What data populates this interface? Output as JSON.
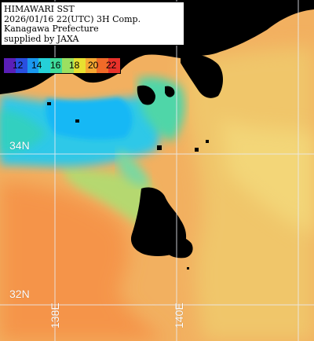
{
  "map": {
    "title_lines": [
      "HIMAWARI SST",
      "2026/01/16 22(UTC) 3H Comp.",
      "Kanagawa Prefecture",
      "supplied by JAXA"
    ],
    "legend": {
      "ticks": [
        "12",
        "14",
        "16",
        "18",
        "20",
        "22"
      ],
      "colors": [
        "#5a1fb8",
        "#2a4fe0",
        "#1a98f0",
        "#25d0d8",
        "#3fdc9a",
        "#9be060",
        "#e8e030",
        "#f5a832",
        "#f06a28",
        "#e8322a"
      ]
    },
    "grid": {
      "lat_labels": [
        "34N",
        "32N"
      ],
      "lon_labels": [
        "138E",
        "140E"
      ],
      "line_color": "#e9ecf2"
    },
    "colors": {
      "land": "#000000",
      "warm_sea": "#f2a85a",
      "mid_sea": "#f0c86a",
      "cool_sea": "#6fd2c8",
      "cold_sea": "#22c3f0",
      "coast_cold": "#10b8f5"
    }
  }
}
